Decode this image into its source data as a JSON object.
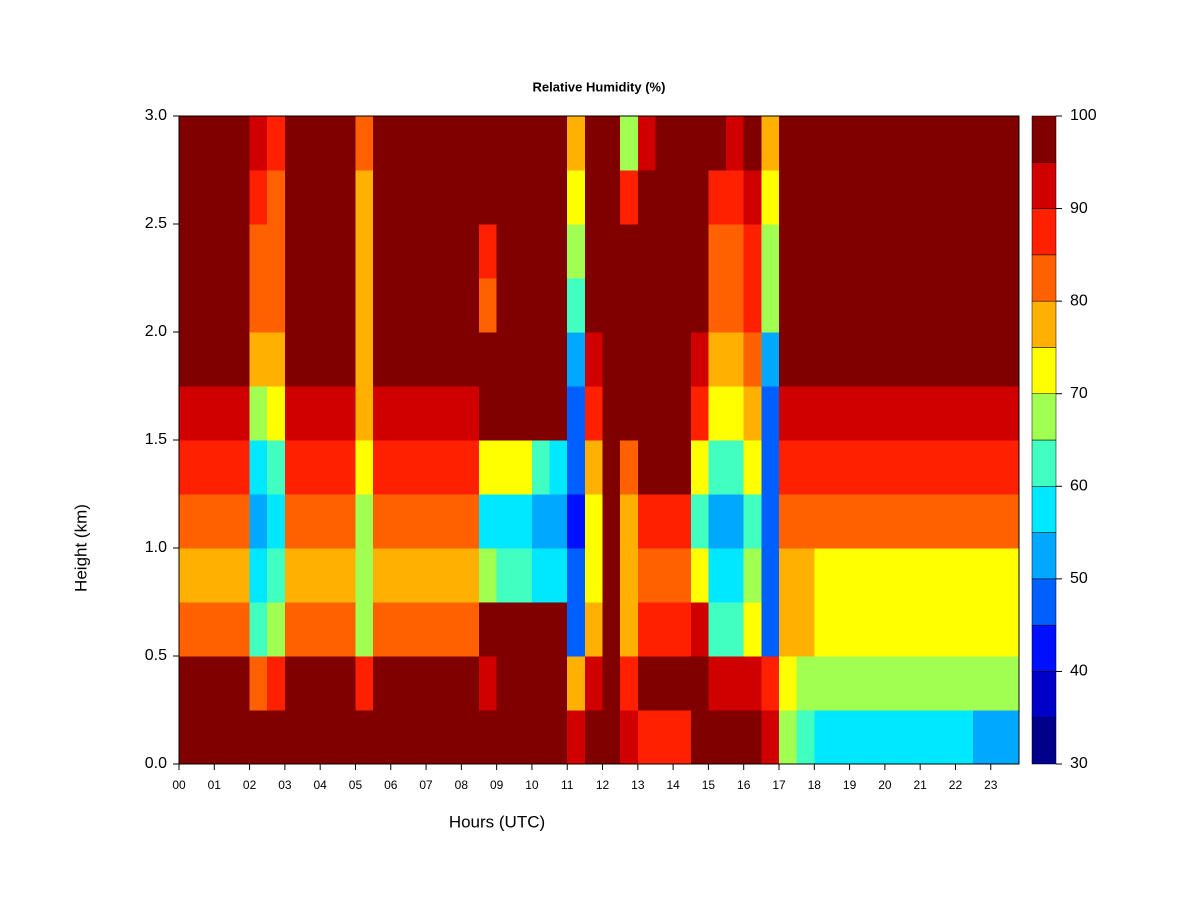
{
  "chart_data": {
    "type": "heatmap",
    "title": "Relative Humidity (%)",
    "x_label": "Hours (UTC)",
    "y_label": "Height (km)",
    "xlim": [
      0,
      23.8
    ],
    "ylim": [
      0,
      3
    ],
    "xticks": [
      {
        "value": 0,
        "label": "00"
      },
      {
        "value": 1,
        "label": "01"
      },
      {
        "value": 2,
        "label": "02"
      },
      {
        "value": 3,
        "label": "03"
      },
      {
        "value": 4,
        "label": "04"
      },
      {
        "value": 5,
        "label": "05"
      },
      {
        "value": 6,
        "label": "06"
      },
      {
        "value": 7,
        "label": "07"
      },
      {
        "value": 8,
        "label": "08"
      },
      {
        "value": 9,
        "label": "09"
      },
      {
        "value": 10,
        "label": "10"
      },
      {
        "value": 11,
        "label": "11"
      },
      {
        "value": 12,
        "label": "12"
      },
      {
        "value": 13,
        "label": "13"
      },
      {
        "value": 14,
        "label": "14"
      },
      {
        "value": 15,
        "label": "15"
      },
      {
        "value": 16,
        "label": "16"
      },
      {
        "value": 17,
        "label": "17"
      },
      {
        "value": 18,
        "label": "18"
      },
      {
        "value": 19,
        "label": "19"
      },
      {
        "value": 20,
        "label": "20"
      },
      {
        "value": 21,
        "label": "21"
      },
      {
        "value": 22,
        "label": "22"
      },
      {
        "value": 23,
        "label": "23"
      }
    ],
    "yticks": [
      {
        "value": 0,
        "label": "0.0"
      },
      0.5,
      {
        "value": 1,
        "label": "1.0"
      },
      1.5,
      {
        "value": 2,
        "label": "2.0"
      },
      2.5,
      {
        "value": 3,
        "label": "3.0"
      }
    ],
    "x_edges": [
      0,
      0.5,
      1,
      1.5,
      2,
      2.5,
      3,
      3.5,
      4,
      4.5,
      5,
      5.5,
      6,
      6.5,
      7,
      7.5,
      8,
      8.5,
      9,
      9.5,
      10,
      10.5,
      11,
      11.5,
      12,
      12.5,
      13,
      13.5,
      14,
      14.5,
      15,
      15.5,
      16,
      16.5,
      17,
      17.5,
      18,
      18.5,
      19,
      19.5,
      20,
      20.5,
      21,
      21.5,
      22,
      22.5,
      23,
      23.5,
      23.8
    ],
    "y_edges": [
      0,
      0.25,
      0.5,
      0.75,
      1,
      1.25,
      1.5,
      1.75,
      2,
      2.25,
      2.5,
      2.75,
      3
    ],
    "z": [
      [
        100,
        100,
        100,
        100,
        100,
        100,
        100,
        100,
        100,
        100,
        100,
        100,
        100,
        100,
        100,
        100,
        100,
        100,
        100,
        100,
        100,
        100,
        90,
        95,
        100,
        90,
        85,
        85,
        85,
        100,
        95,
        95,
        95,
        90,
        65,
        60,
        55,
        55,
        55,
        55,
        55,
        55,
        55,
        55,
        55,
        50,
        50,
        50
      ],
      [
        95,
        95,
        95,
        95,
        80,
        85,
        95,
        95,
        95,
        95,
        85,
        95,
        95,
        95,
        95,
        95,
        95,
        90,
        95,
        95,
        95,
        95,
        75,
        90,
        100,
        85,
        95,
        95,
        95,
        95,
        90,
        90,
        90,
        85,
        70,
        65,
        65,
        65,
        65,
        65,
        65,
        65,
        65,
        65,
        65,
        65,
        65,
        65
      ],
      [
        80,
        80,
        80,
        80,
        60,
        65,
        80,
        80,
        80,
        80,
        65,
        80,
        80,
        80,
        80,
        80,
        80,
        95,
        95,
        95,
        95,
        95,
        45,
        75,
        95,
        75,
        85,
        85,
        85,
        90,
        60,
        60,
        70,
        45,
        75,
        75,
        70,
        70,
        70,
        70,
        70,
        70,
        70,
        70,
        70,
        70,
        70,
        70
      ],
      [
        75,
        75,
        75,
        75,
        55,
        60,
        75,
        75,
        75,
        75,
        65,
        75,
        75,
        75,
        75,
        75,
        75,
        65,
        60,
        60,
        55,
        55,
        45,
        70,
        95,
        75,
        80,
        80,
        80,
        70,
        55,
        55,
        65,
        45,
        75,
        75,
        70,
        70,
        70,
        70,
        70,
        70,
        70,
        70,
        70,
        70,
        70,
        70
      ],
      [
        80,
        80,
        80,
        80,
        50,
        55,
        80,
        80,
        80,
        80,
        65,
        80,
        80,
        80,
        80,
        80,
        80,
        55,
        55,
        55,
        50,
        50,
        40,
        70,
        95,
        75,
        85,
        85,
        85,
        60,
        50,
        50,
        60,
        45,
        80,
        80,
        80,
        80,
        80,
        80,
        80,
        80,
        80,
        80,
        80,
        80,
        80,
        80
      ],
      [
        85,
        85,
        85,
        85,
        55,
        60,
        85,
        85,
        85,
        85,
        70,
        85,
        85,
        85,
        85,
        85,
        85,
        70,
        70,
        70,
        60,
        55,
        45,
        75,
        100,
        80,
        95,
        95,
        95,
        70,
        60,
        60,
        70,
        45,
        85,
        85,
        85,
        85,
        85,
        85,
        85,
        85,
        85,
        85,
        85,
        85,
        85,
        85
      ],
      [
        90,
        90,
        90,
        90,
        65,
        70,
        90,
        90,
        90,
        90,
        75,
        90,
        90,
        90,
        90,
        90,
        90,
        100,
        100,
        100,
        100,
        100,
        45,
        85,
        100,
        100,
        100,
        100,
        100,
        85,
        70,
        70,
        75,
        45,
        90,
        90,
        90,
        90,
        90,
        90,
        90,
        90,
        90,
        90,
        90,
        90,
        90,
        90
      ],
      [
        95,
        95,
        95,
        95,
        75,
        75,
        95,
        95,
        95,
        95,
        75,
        95,
        95,
        95,
        95,
        95,
        95,
        100,
        100,
        100,
        100,
        100,
        50,
        90,
        100,
        100,
        100,
        100,
        100,
        90,
        75,
        75,
        80,
        50,
        95,
        95,
        95,
        95,
        95,
        95,
        95,
        95,
        95,
        95,
        95,
        95,
        95,
        95
      ],
      [
        100,
        100,
        100,
        100,
        80,
        80,
        100,
        100,
        100,
        100,
        75,
        100,
        100,
        100,
        100,
        100,
        100,
        80,
        100,
        100,
        100,
        100,
        60,
        95,
        100,
        100,
        100,
        100,
        100,
        95,
        80,
        80,
        85,
        65,
        100,
        100,
        100,
        100,
        100,
        100,
        100,
        100,
        100,
        100,
        100,
        100,
        100,
        100
      ],
      [
        100,
        100,
        100,
        100,
        80,
        80,
        100,
        100,
        100,
        100,
        75,
        100,
        100,
        100,
        100,
        100,
        100,
        85,
        100,
        100,
        100,
        100,
        65,
        95,
        100,
        95,
        100,
        100,
        100,
        95,
        80,
        80,
        85,
        65,
        100,
        100,
        100,
        100,
        100,
        100,
        100,
        100,
        100,
        100,
        100,
        100,
        100,
        100
      ],
      [
        100,
        100,
        100,
        100,
        85,
        80,
        100,
        100,
        100,
        100,
        75,
        100,
        100,
        100,
        100,
        100,
        100,
        100,
        100,
        100,
        100,
        100,
        70,
        100,
        100,
        85,
        100,
        100,
        100,
        100,
        85,
        85,
        90,
        70,
        100,
        100,
        100,
        100,
        100,
        100,
        100,
        100,
        100,
        100,
        100,
        100,
        100,
        100
      ],
      [
        100,
        100,
        100,
        100,
        90,
        85,
        100,
        100,
        100,
        100,
        80,
        100,
        100,
        100,
        100,
        100,
        100,
        100,
        100,
        100,
        100,
        100,
        75,
        100,
        100,
        65,
        90,
        100,
        100,
        100,
        95,
        90,
        95,
        75,
        100,
        100,
        100,
        100,
        100,
        100,
        100,
        100,
        100,
        100,
        100,
        100,
        100,
        100
      ]
    ],
    "colorbar": {
      "levels": [
        30,
        35,
        40,
        45,
        50,
        55,
        60,
        65,
        70,
        75,
        80,
        85,
        90,
        95,
        100
      ],
      "colors": [
        "#00008b",
        "#0000c8",
        "#0010ff",
        "#0060ff",
        "#00a8ff",
        "#00e8ff",
        "#40ffc0",
        "#a0ff50",
        "#ffff00",
        "#ffb000",
        "#ff6000",
        "#ff2000",
        "#d00000",
        "#800000"
      ],
      "ticks": [
        30,
        40,
        50,
        60,
        70,
        80,
        90,
        100
      ]
    }
  }
}
